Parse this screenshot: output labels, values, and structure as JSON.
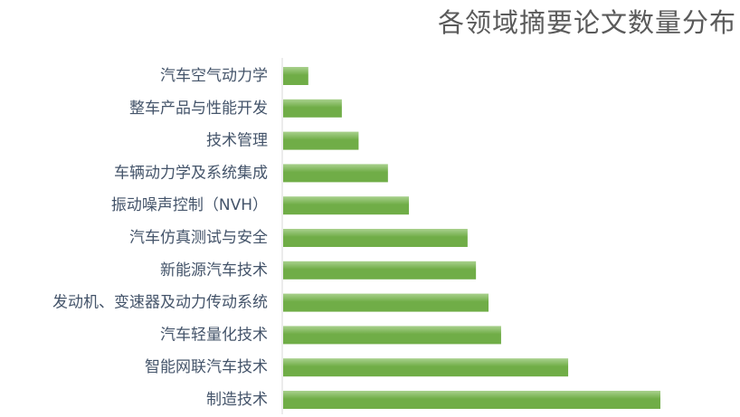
{
  "chart_data": {
    "type": "bar",
    "orientation": "horizontal",
    "title": "各领域摘要论文数量分布",
    "xlabel": "",
    "ylabel": "",
    "categories": [
      "汽车空气动力学",
      "整车产品与性能开发",
      "技术管理",
      "车辆动力学及系统集成",
      "振动噪声控制（NVH）",
      "汽车仿真测试与安全",
      "新能源汽车技术",
      "发动机、变速器及动力传动系统",
      "汽车轻量化技术",
      "智能网联汽车技术",
      "制造技术"
    ],
    "values": [
      6,
      14,
      18,
      25,
      30,
      44,
      46,
      49,
      52,
      68,
      90
    ],
    "xlim": [
      0,
      90
    ],
    "grid": false,
    "legend": "none",
    "bar_color": "#70ad47",
    "bar_gradient_light": "#a9d18e",
    "label_color": "#44546a",
    "axis_color": "#d9d9d9"
  }
}
